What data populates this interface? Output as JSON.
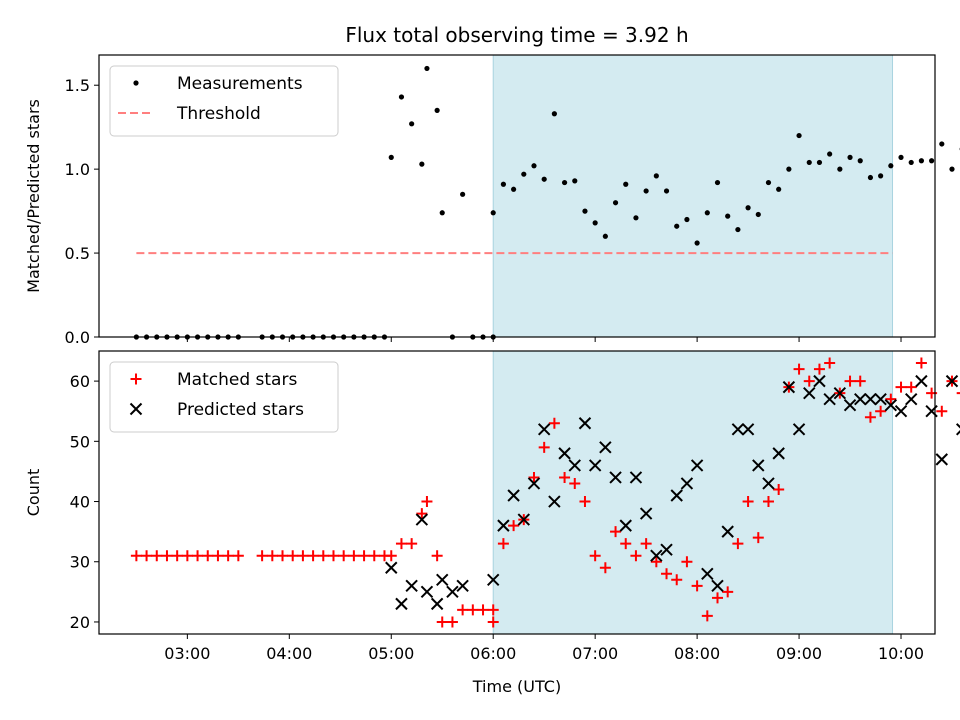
{
  "chart_data": {
    "type": "scatter",
    "title": "Flux total observing time = 3.92 h",
    "xlabel": "Time (UTC)",
    "xlim": [
      "02:08",
      "10:20"
    ],
    "xticks": [
      "03:00",
      "04:00",
      "05:00",
      "06:00",
      "07:00",
      "08:00",
      "09:00",
      "10:00"
    ],
    "shaded_interval": {
      "start": "06:00",
      "end": "09:55",
      "color": "#d4ebf1"
    },
    "panels": [
      {
        "ylabel": "Matched/Predicted stars",
        "ylim": [
          0,
          1.68
        ],
        "yticks": [
          "0.0",
          "0.5",
          "1.0",
          "1.5"
        ],
        "legend": {
          "position": "upper-left",
          "entries": [
            "Measurements",
            "Threshold"
          ]
        },
        "threshold": {
          "name": "Threshold",
          "value": 0.5,
          "start": "02:30",
          "end": "09:55",
          "color": "#ff7f7f"
        },
        "series": [
          {
            "name": "Measurements",
            "marker": "dot",
            "color": "#000000",
            "points": [
              [
                "02:30",
                0
              ],
              [
                "02:36",
                0
              ],
              [
                "02:42",
                0
              ],
              [
                "02:48",
                0
              ],
              [
                "02:54",
                0
              ],
              [
                "03:00",
                0
              ],
              [
                "03:06",
                0
              ],
              [
                "03:12",
                0
              ],
              [
                "03:18",
                0
              ],
              [
                "03:24",
                0
              ],
              [
                "03:30",
                0
              ],
              [
                "03:44",
                0
              ],
              [
                "03:50",
                0
              ],
              [
                "03:56",
                0
              ],
              [
                "04:02",
                0
              ],
              [
                "04:08",
                0
              ],
              [
                "04:14",
                0
              ],
              [
                "04:20",
                0
              ],
              [
                "04:26",
                0
              ],
              [
                "04:32",
                0
              ],
              [
                "04:38",
                0
              ],
              [
                "04:44",
                0
              ],
              [
                "04:50",
                0
              ],
              [
                "04:56",
                0
              ],
              [
                "05:00",
                1.07
              ],
              [
                "05:06",
                1.43
              ],
              [
                "05:12",
                1.27
              ],
              [
                "05:18",
                1.03
              ],
              [
                "05:21",
                1.6
              ],
              [
                "05:27",
                1.35
              ],
              [
                "05:30",
                0.74
              ],
              [
                "05:36",
                0
              ],
              [
                "05:42",
                0.85
              ],
              [
                "05:48",
                0
              ],
              [
                "05:54",
                0
              ],
              [
                "06:00",
                0
              ],
              [
                "06:00",
                0.74
              ],
              [
                "06:06",
                0.91
              ],
              [
                "06:12",
                0.88
              ],
              [
                "06:18",
                0.97
              ],
              [
                "06:24",
                1.02
              ],
              [
                "06:30",
                0.94
              ],
              [
                "06:36",
                1.33
              ],
              [
                "06:42",
                0.92
              ],
              [
                "06:48",
                0.93
              ],
              [
                "06:54",
                0.75
              ],
              [
                "07:00",
                0.68
              ],
              [
                "07:06",
                0.6
              ],
              [
                "07:12",
                0.8
              ],
              [
                "07:18",
                0.91
              ],
              [
                "07:24",
                0.71
              ],
              [
                "07:30",
                0.87
              ],
              [
                "07:36",
                0.96
              ],
              [
                "07:42",
                0.87
              ],
              [
                "07:48",
                0.66
              ],
              [
                "07:54",
                0.7
              ],
              [
                "08:00",
                0.56
              ],
              [
                "08:06",
                0.74
              ],
              [
                "08:12",
                0.92
              ],
              [
                "08:18",
                0.72
              ],
              [
                "08:24",
                0.64
              ],
              [
                "08:30",
                0.77
              ],
              [
                "08:36",
                0.73
              ],
              [
                "08:42",
                0.92
              ],
              [
                "08:48",
                0.88
              ],
              [
                "08:54",
                1.0
              ],
              [
                "09:00",
                1.2
              ],
              [
                "09:06",
                1.04
              ],
              [
                "09:12",
                1.04
              ],
              [
                "09:18",
                1.09
              ],
              [
                "09:24",
                1.0
              ],
              [
                "09:30",
                1.07
              ],
              [
                "09:36",
                1.05
              ],
              [
                "09:42",
                0.95
              ],
              [
                "09:48",
                0.96
              ],
              [
                "09:54",
                1.02
              ],
              [
                "10:00",
                1.07
              ],
              [
                "10:06",
                1.04
              ],
              [
                "10:12",
                1.05
              ],
              [
                "10:18",
                1.05
              ],
              [
                "10:24",
                1.15
              ],
              [
                "10:30",
                1.0
              ],
              [
                "10:36",
                1.12
              ],
              [
                "10:42",
                1.08
              ]
            ]
          }
        ]
      },
      {
        "ylabel": "Count",
        "ylim": [
          18,
          65
        ],
        "yticks": [
          "20",
          "30",
          "40",
          "50",
          "60"
        ],
        "legend": {
          "position": "upper-left",
          "entries": [
            "Matched stars",
            "Predicted stars"
          ]
        },
        "series": [
          {
            "name": "Matched stars",
            "marker": "plus",
            "color": "#ff0000",
            "points": [
              [
                "02:30",
                31
              ],
              [
                "02:36",
                31
              ],
              [
                "02:42",
                31
              ],
              [
                "02:48",
                31
              ],
              [
                "02:54",
                31
              ],
              [
                "03:00",
                31
              ],
              [
                "03:06",
                31
              ],
              [
                "03:12",
                31
              ],
              [
                "03:18",
                31
              ],
              [
                "03:24",
                31
              ],
              [
                "03:30",
                31
              ],
              [
                "03:44",
                31
              ],
              [
                "03:50",
                31
              ],
              [
                "03:56",
                31
              ],
              [
                "04:02",
                31
              ],
              [
                "04:08",
                31
              ],
              [
                "04:14",
                31
              ],
              [
                "04:20",
                31
              ],
              [
                "04:26",
                31
              ],
              [
                "04:32",
                31
              ],
              [
                "04:38",
                31
              ],
              [
                "04:44",
                31
              ],
              [
                "04:50",
                31
              ],
              [
                "04:56",
                31
              ],
              [
                "05:00",
                31
              ],
              [
                "05:06",
                33
              ],
              [
                "05:12",
                33
              ],
              [
                "05:18",
                38
              ],
              [
                "05:21",
                40
              ],
              [
                "05:27",
                31
              ],
              [
                "05:30",
                20
              ],
              [
                "05:36",
                20
              ],
              [
                "05:42",
                22
              ],
              [
                "05:48",
                22
              ],
              [
                "05:54",
                22
              ],
              [
                "06:00",
                22
              ],
              [
                "06:00",
                20
              ],
              [
                "06:06",
                33
              ],
              [
                "06:12",
                36
              ],
              [
                "06:18",
                37
              ],
              [
                "06:24",
                44
              ],
              [
                "06:30",
                49
              ],
              [
                "06:36",
                53
              ],
              [
                "06:42",
                44
              ],
              [
                "06:48",
                43
              ],
              [
                "06:54",
                40
              ],
              [
                "07:00",
                31
              ],
              [
                "07:06",
                29
              ],
              [
                "07:12",
                35
              ],
              [
                "07:18",
                33
              ],
              [
                "07:24",
                31
              ],
              [
                "07:30",
                33
              ],
              [
                "07:36",
                30
              ],
              [
                "07:42",
                28
              ],
              [
                "07:48",
                27
              ],
              [
                "07:54",
                30
              ],
              [
                "08:00",
                26
              ],
              [
                "08:06",
                21
              ],
              [
                "08:12",
                24
              ],
              [
                "08:18",
                25
              ],
              [
                "08:24",
                33
              ],
              [
                "08:30",
                40
              ],
              [
                "08:36",
                34
              ],
              [
                "08:42",
                40
              ],
              [
                "08:48",
                42
              ],
              [
                "08:54",
                59
              ],
              [
                "09:00",
                62
              ],
              [
                "09:06",
                60
              ],
              [
                "09:12",
                62
              ],
              [
                "09:18",
                63
              ],
              [
                "09:24",
                58
              ],
              [
                "09:30",
                60
              ],
              [
                "09:36",
                60
              ],
              [
                "09:42",
                54
              ],
              [
                "09:48",
                55
              ],
              [
                "09:54",
                57
              ],
              [
                "10:00",
                59
              ],
              [
                "10:06",
                59
              ],
              [
                "10:12",
                63
              ],
              [
                "10:18",
                58
              ],
              [
                "10:24",
                55
              ],
              [
                "10:30",
                60
              ],
              [
                "10:36",
                58
              ],
              [
                "10:42",
                55
              ]
            ]
          },
          {
            "name": "Predicted stars",
            "marker": "x",
            "color": "#000000",
            "points": [
              [
                "05:00",
                29
              ],
              [
                "05:06",
                23
              ],
              [
                "05:12",
                26
              ],
              [
                "05:18",
                37
              ],
              [
                "05:21",
                25
              ],
              [
                "05:27",
                23
              ],
              [
                "05:30",
                27
              ],
              [
                "05:36",
                25
              ],
              [
                "05:42",
                26
              ],
              [
                "06:00",
                27
              ],
              [
                "06:06",
                36
              ],
              [
                "06:12",
                41
              ],
              [
                "06:18",
                37
              ],
              [
                "06:24",
                43
              ],
              [
                "06:30",
                52
              ],
              [
                "06:36",
                40
              ],
              [
                "06:42",
                48
              ],
              [
                "06:48",
                46
              ],
              [
                "06:54",
                53
              ],
              [
                "07:00",
                46
              ],
              [
                "07:06",
                49
              ],
              [
                "07:12",
                44
              ],
              [
                "07:18",
                36
              ],
              [
                "07:24",
                44
              ],
              [
                "07:30",
                38
              ],
              [
                "07:36",
                31
              ],
              [
                "07:42",
                32
              ],
              [
                "07:48",
                41
              ],
              [
                "07:54",
                43
              ],
              [
                "08:00",
                46
              ],
              [
                "08:06",
                28
              ],
              [
                "08:12",
                26
              ],
              [
                "08:18",
                35
              ],
              [
                "08:24",
                52
              ],
              [
                "08:30",
                52
              ],
              [
                "08:36",
                46
              ],
              [
                "08:42",
                43
              ],
              [
                "08:48",
                48
              ],
              [
                "08:54",
                59
              ],
              [
                "09:00",
                52
              ],
              [
                "09:06",
                58
              ],
              [
                "09:12",
                60
              ],
              [
                "09:18",
                57
              ],
              [
                "09:24",
                58
              ],
              [
                "09:30",
                56
              ],
              [
                "09:36",
                57
              ],
              [
                "09:42",
                57
              ],
              [
                "09:48",
                57
              ],
              [
                "09:54",
                56
              ],
              [
                "10:00",
                55
              ],
              [
                "10:06",
                57
              ],
              [
                "10:12",
                60
              ],
              [
                "10:18",
                55
              ],
              [
                "10:24",
                47
              ],
              [
                "10:30",
                60
              ],
              [
                "10:36",
                52
              ],
              [
                "10:42",
                51
              ]
            ]
          }
        ]
      }
    ]
  }
}
